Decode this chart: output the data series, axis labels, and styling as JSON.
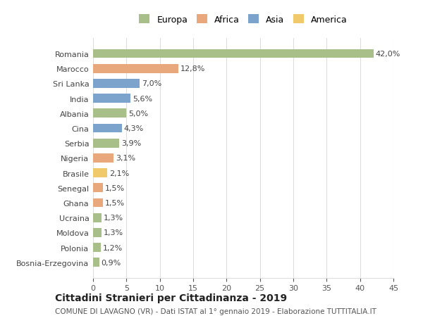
{
  "categories": [
    "Bosnia-Erzegovina",
    "Polonia",
    "Moldova",
    "Ucraina",
    "Ghana",
    "Senegal",
    "Brasile",
    "Nigeria",
    "Serbia",
    "Cina",
    "Albania",
    "India",
    "Sri Lanka",
    "Marocco",
    "Romania"
  ],
  "values": [
    0.9,
    1.2,
    1.3,
    1.3,
    1.5,
    1.5,
    2.1,
    3.1,
    3.9,
    4.3,
    5.0,
    5.6,
    7.0,
    12.8,
    42.0
  ],
  "labels": [
    "0,9%",
    "1,2%",
    "1,3%",
    "1,3%",
    "1,5%",
    "1,5%",
    "2,1%",
    "3,1%",
    "3,9%",
    "4,3%",
    "5,0%",
    "5,6%",
    "7,0%",
    "12,8%",
    "42,0%"
  ],
  "colors": [
    "#a8bf8a",
    "#a8bf8a",
    "#a8bf8a",
    "#a8bf8a",
    "#e8a87c",
    "#e8a87c",
    "#f0c96a",
    "#e8a87c",
    "#a8bf8a",
    "#7ba3cc",
    "#a8bf8a",
    "#7ba3cc",
    "#7ba3cc",
    "#e8a87c",
    "#a8bf8a"
  ],
  "continent_colors": {
    "Europa": "#a8bf8a",
    "Africa": "#e8a87c",
    "Asia": "#7ba3cc",
    "America": "#f0c96a"
  },
  "title": "Cittadini Stranieri per Cittadinanza - 2019",
  "subtitle": "COMUNE DI LAVAGNO (VR) - Dati ISTAT al 1° gennaio 2019 - Elaborazione TUTTITALIA.IT",
  "xlim": [
    0,
    45
  ],
  "xticks": [
    0,
    5,
    10,
    15,
    20,
    25,
    30,
    35,
    40,
    45
  ],
  "background_color": "#ffffff",
  "grid_color": "#dddddd",
  "bar_height": 0.6
}
